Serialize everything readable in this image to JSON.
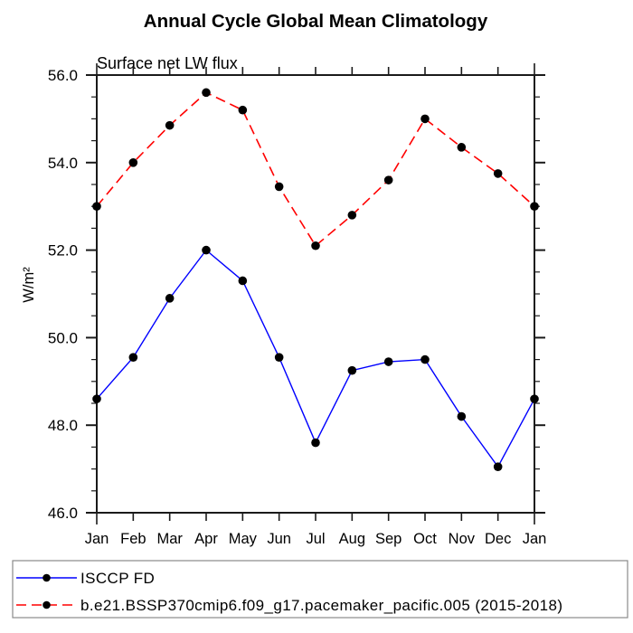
{
  "title": "Annual Cycle Global Mean Climatology",
  "subtitle": "Surface net LW flux",
  "ylabel": "W/m²",
  "colors": {
    "axis": "#1a1a1a",
    "series_obs": "#0000ff",
    "series_model": "#ff0000",
    "marker": "#000000",
    "legend_border": "#8a8a8a",
    "background": "#ffffff"
  },
  "chart_data": {
    "type": "line",
    "categories": [
      "Jan",
      "Feb",
      "Mar",
      "Apr",
      "May",
      "Jun",
      "Jul",
      "Aug",
      "Sep",
      "Oct",
      "Nov",
      "Dec",
      "Jan"
    ],
    "series": [
      {
        "name": "ISCCP FD",
        "color": "#0000ff",
        "style": "solid",
        "marker": "circle",
        "marker_color": "#000000",
        "values": [
          48.6,
          49.55,
          50.9,
          52.0,
          51.3,
          49.55,
          47.6,
          49.25,
          49.45,
          49.5,
          48.2,
          47.05,
          48.6
        ]
      },
      {
        "name": "b.e21.BSSP370cmip6.f09_g17.pacemaker_pacific.005 (2015-2018)",
        "color": "#ff0000",
        "style": "dashed",
        "marker": "circle",
        "marker_color": "#000000",
        "values": [
          53.0,
          54.0,
          54.85,
          55.6,
          55.2,
          53.45,
          52.1,
          52.8,
          53.6,
          55.0,
          54.35,
          53.75,
          53.0
        ]
      }
    ],
    "xlabel": "",
    "ylabel": "W/m²",
    "ylim": [
      46.0,
      56.0
    ],
    "yticks": [
      46,
      48,
      50,
      52,
      54,
      56
    ],
    "ytick_labels": [
      "46.0",
      "48.0",
      "50.0",
      "52.0",
      "54.0",
      "56.0"
    ],
    "y_minor_step": 0.5,
    "grid": false,
    "legend_position": "bottom"
  }
}
